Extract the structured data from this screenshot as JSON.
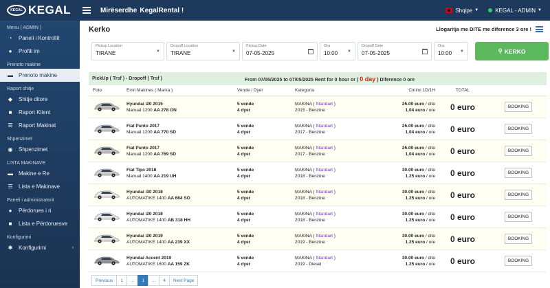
{
  "header": {
    "logo_text": "KEGAL",
    "logo_badge_text": "KEGAL",
    "welcome_prefix": "Mirëserdhe",
    "welcome_name": "KegalRental !",
    "language": "Shqipe",
    "user": "KEGAL - ADMIN"
  },
  "sidebar": {
    "section_admin": "Menu ( ADMIN )",
    "panel": "Paneli i Kontrollit",
    "profile": "Profili im",
    "section_book": "Prenoto makine",
    "book_item": "Prenoto makine",
    "section_reports": "Raport shitje",
    "daily_sales": "Shitje ditore",
    "client_report": "Raport Klient",
    "car_report": "Raport Makinat",
    "section_expenses": "Shpenzimet",
    "expenses": "Shpenzimet",
    "section_cars": "LISTA MAKINAVE",
    "new_cars": "Makine e Re",
    "car_list": "Lista e Makinave",
    "section_users": "Paneli i administratorit",
    "new_user": "Përdorues i ri",
    "user_list": "Lista e Përdoruesve",
    "section_config": "Konfigurimi",
    "config": "Konfigurimi"
  },
  "main": {
    "title": "Kerko",
    "day_info": "Llogaritja me DITE me diference 3 ore !"
  },
  "search": {
    "pickup_location_label": "Pickup Location",
    "pickup_location": "TIRANE",
    "dropoff_location_label": "Dropoff Location",
    "dropoff_location": "TIRANE",
    "pickup_date_label": "Pickup Date",
    "pickup_date": "07-05-2025",
    "pickup_time_label": "Ora",
    "pickup_time": "10:00",
    "dropoff_date_label": "Dropoff Date",
    "dropoff_date": "07-05-2025",
    "dropoff_time_label": "Ora",
    "dropoff_time": "10:00",
    "button": "KERKO"
  },
  "results": {
    "route": "PickUp ( Trsf ) - Dropoff ( Trsf )",
    "period_text": "From 07/05/2025 to 07/05/2025 Rent for 0 hour or (",
    "days": "0 day",
    "period_suffix": ") Diference 0 ore",
    "col_foto": "Foto",
    "col_name": "Emri Makines ( Marka )",
    "col_seats": "Vende / Dyer",
    "col_category": "Kategoria",
    "col_price": "Cmimi 1D/1H",
    "col_total": "TOTAL"
  },
  "cars": [
    {
      "name": "Hyundai i20 2015",
      "trans": "Manual 1200",
      "plate": "AA 278 ON",
      "seats": "5 vende",
      "doors": "4 dyer",
      "cat": "MAKINA",
      "std": "Standart",
      "year_fuel": "2015 - Benzine",
      "day": "25.00 euro",
      "day_suffix": "/ dite",
      "hour": "1.04 euro",
      "hour_suffix": "/ ore",
      "total": "0 euro",
      "btn": "BOOKING",
      "color": "#b9b9b9"
    },
    {
      "name": "Fiat Punto 2017",
      "trans": "Manual 1200",
      "plate": "AA 770 SD",
      "seats": "5 vende",
      "doors": "4 dyer",
      "cat": "MAKINA",
      "std": "Standart",
      "year_fuel": "2017 - Benzine",
      "day": "25.00 euro",
      "day_suffix": "/ dite",
      "hour": "1.04 euro",
      "hour_suffix": "/ ore",
      "total": "0 euro",
      "btn": "BOOKING",
      "color": "#c4c4c4"
    },
    {
      "name": "Fiat Punto 2017",
      "trans": "Manual 1200",
      "plate": "AA 769 SD",
      "seats": "5 vende",
      "doors": "4 dyer",
      "cat": "MAKINA",
      "std": "Standart",
      "year_fuel": "2017 - Benzine",
      "day": "25.00 euro",
      "day_suffix": "/ dite",
      "hour": "1.04 euro",
      "hour_suffix": "/ ore",
      "total": "0 euro",
      "btn": "BOOKING",
      "color": "#bdbdbd"
    },
    {
      "name": "Fiat Tipo 2018",
      "trans": "Manual 1400",
      "plate": "AA 219 UH",
      "seats": "5 vende",
      "doors": "4 dyer",
      "cat": "MAKINA",
      "std": "Standart",
      "year_fuel": "2018 - Benzine",
      "day": "30.00 euro",
      "day_suffix": "/ dite",
      "hour": "1.25 euro",
      "hour_suffix": "/ ore",
      "total": "0 euro",
      "btn": "BOOKING",
      "color": "#c8c8c8"
    },
    {
      "name": "Hyundai i30 2018",
      "trans": "AUTOMATIKE 1400",
      "plate": "AA 684 SO",
      "seats": "5 vende",
      "doors": "4 dyer",
      "cat": "MAKINA",
      "std": "Standart",
      "year_fuel": "2018 - Benzine",
      "day": "30.00 euro",
      "day_suffix": "/ dite",
      "hour": "1.25 euro",
      "hour_suffix": "/ ore",
      "total": "0 euro",
      "btn": "BOOKING",
      "color": "#e6e6e6"
    },
    {
      "name": "Hyundai i20 2018",
      "trans": "AUTOMATIKE 1400",
      "plate": "AB 318 HH",
      "seats": "5 vende",
      "doors": "4 dyer",
      "cat": "MAKINA",
      "std": "Standart",
      "year_fuel": "2018 - Benzine",
      "day": "30.00 euro",
      "day_suffix": "/ dite",
      "hour": "1.25 euro",
      "hour_suffix": "/ ore",
      "total": "0 euro",
      "btn": "BOOKING",
      "color": "#e2e2e2"
    },
    {
      "name": "Hyundai i20 2019",
      "trans": "AUTOMATIKE 1400",
      "plate": "AA 239 XX",
      "seats": "5 vende",
      "doors": "4 dyer",
      "cat": "MAKINA",
      "std": "Standart",
      "year_fuel": "2019 - Benzine",
      "day": "30.00 euro",
      "day_suffix": "/ dite",
      "hour": "1.25 euro",
      "hour_suffix": "/ ore",
      "total": "0 euro",
      "btn": "BOOKING",
      "color": "#dcdcdc"
    },
    {
      "name": "Hyundai Accent 2019",
      "trans": "AUTOMATIKE 1600",
      "plate": "AA 159 ZK",
      "seats": "5 vende",
      "doors": "4 dyer",
      "cat": "MAKINA",
      "std": "Standart",
      "year_fuel": "2019 - Diesel",
      "day": "30.00 euro",
      "day_suffix": "/ dite",
      "hour": "1.25 euro",
      "hour_suffix": "/ ore",
      "total": "0 euro",
      "btn": "BOOKING",
      "color": "#8f9296"
    }
  ],
  "pagination": {
    "previous": "Previous",
    "p1": "1",
    "ellipsis1": "...",
    "current": "1",
    "ellipsis2": "...",
    "p4": "4",
    "next": "Next Page"
  }
}
